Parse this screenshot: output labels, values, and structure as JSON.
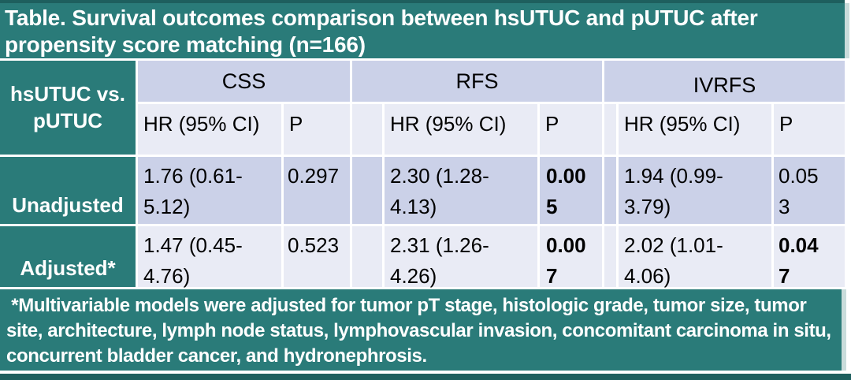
{
  "title": "Table. Survival outcomes comparison between hsUTUC and pUTUC after propensity score matching (n=166)",
  "colors": {
    "teal": "#2a7b79",
    "teal_dark_edge": "#1e5f5e",
    "header_band_lavender": "#cbd1e8",
    "row_light_lavender": "#e9ebf5",
    "text_on_teal": "#ffffff",
    "text_dark": "#000000"
  },
  "table": {
    "corner_label": "hsUTUC vs. pUTUC",
    "groups": [
      {
        "label": "CSS",
        "hr_header": "HR (95% CI)",
        "p_header": "P"
      },
      {
        "label": "RFS",
        "hr_header": "HR (95% CI)",
        "p_header": "P"
      },
      {
        "label": "IVRFS",
        "hr_header": "HR (95% CI)",
        "p_header": "P"
      }
    ],
    "rows": [
      {
        "label": "Unadjusted",
        "cells": [
          {
            "hr": "1.76 (0.61-5.12)",
            "p": "0.297",
            "p_significant": false
          },
          {
            "hr": "2.30 (1.28-4.13)",
            "p": "0.005",
            "p_significant": true
          },
          {
            "hr": "1.94 (0.99-3.79)",
            "p": "0.053",
            "p_significant": false
          }
        ]
      },
      {
        "label": "Adjusted*",
        "cells": [
          {
            "hr": "1.47 (0.45-4.76)",
            "p": "0.523",
            "p_significant": false
          },
          {
            "hr": "2.31 (1.26-4.26)",
            "p": "0.007",
            "p_significant": true
          },
          {
            "hr": "2.02 (1.01-4.06)",
            "p": "0.047",
            "p_significant": true
          }
        ]
      }
    ]
  },
  "footnote": " *Multivariable models were adjusted for tumor pT stage, histologic grade, tumor size, tumor site, architecture, lymph node status, lymphovascular invasion, concomitant carcinoma in situ, concurrent bladder cancer, and hydronephrosis.",
  "chart_data": {
    "type": "table",
    "title": "Survival outcomes comparison between hsUTUC and pUTUC after propensity score matching (n=166)",
    "columns": [
      "hsUTUC vs. pUTUC",
      "CSS HR (95% CI)",
      "CSS P",
      "RFS HR (95% CI)",
      "RFS P",
      "IVRFS HR (95% CI)",
      "IVRFS P"
    ],
    "rows": [
      [
        "Unadjusted",
        "1.76 (0.61-5.12)",
        "0.297",
        "2.30 (1.28-4.13)",
        "0.005",
        "1.94 (0.99-3.79)",
        "0.053"
      ],
      [
        "Adjusted*",
        "1.47 (0.45-4.76)",
        "0.523",
        "2.31 (1.26-4.26)",
        "0.007",
        "2.02 (1.01-4.06)",
        "0.047"
      ]
    ]
  }
}
